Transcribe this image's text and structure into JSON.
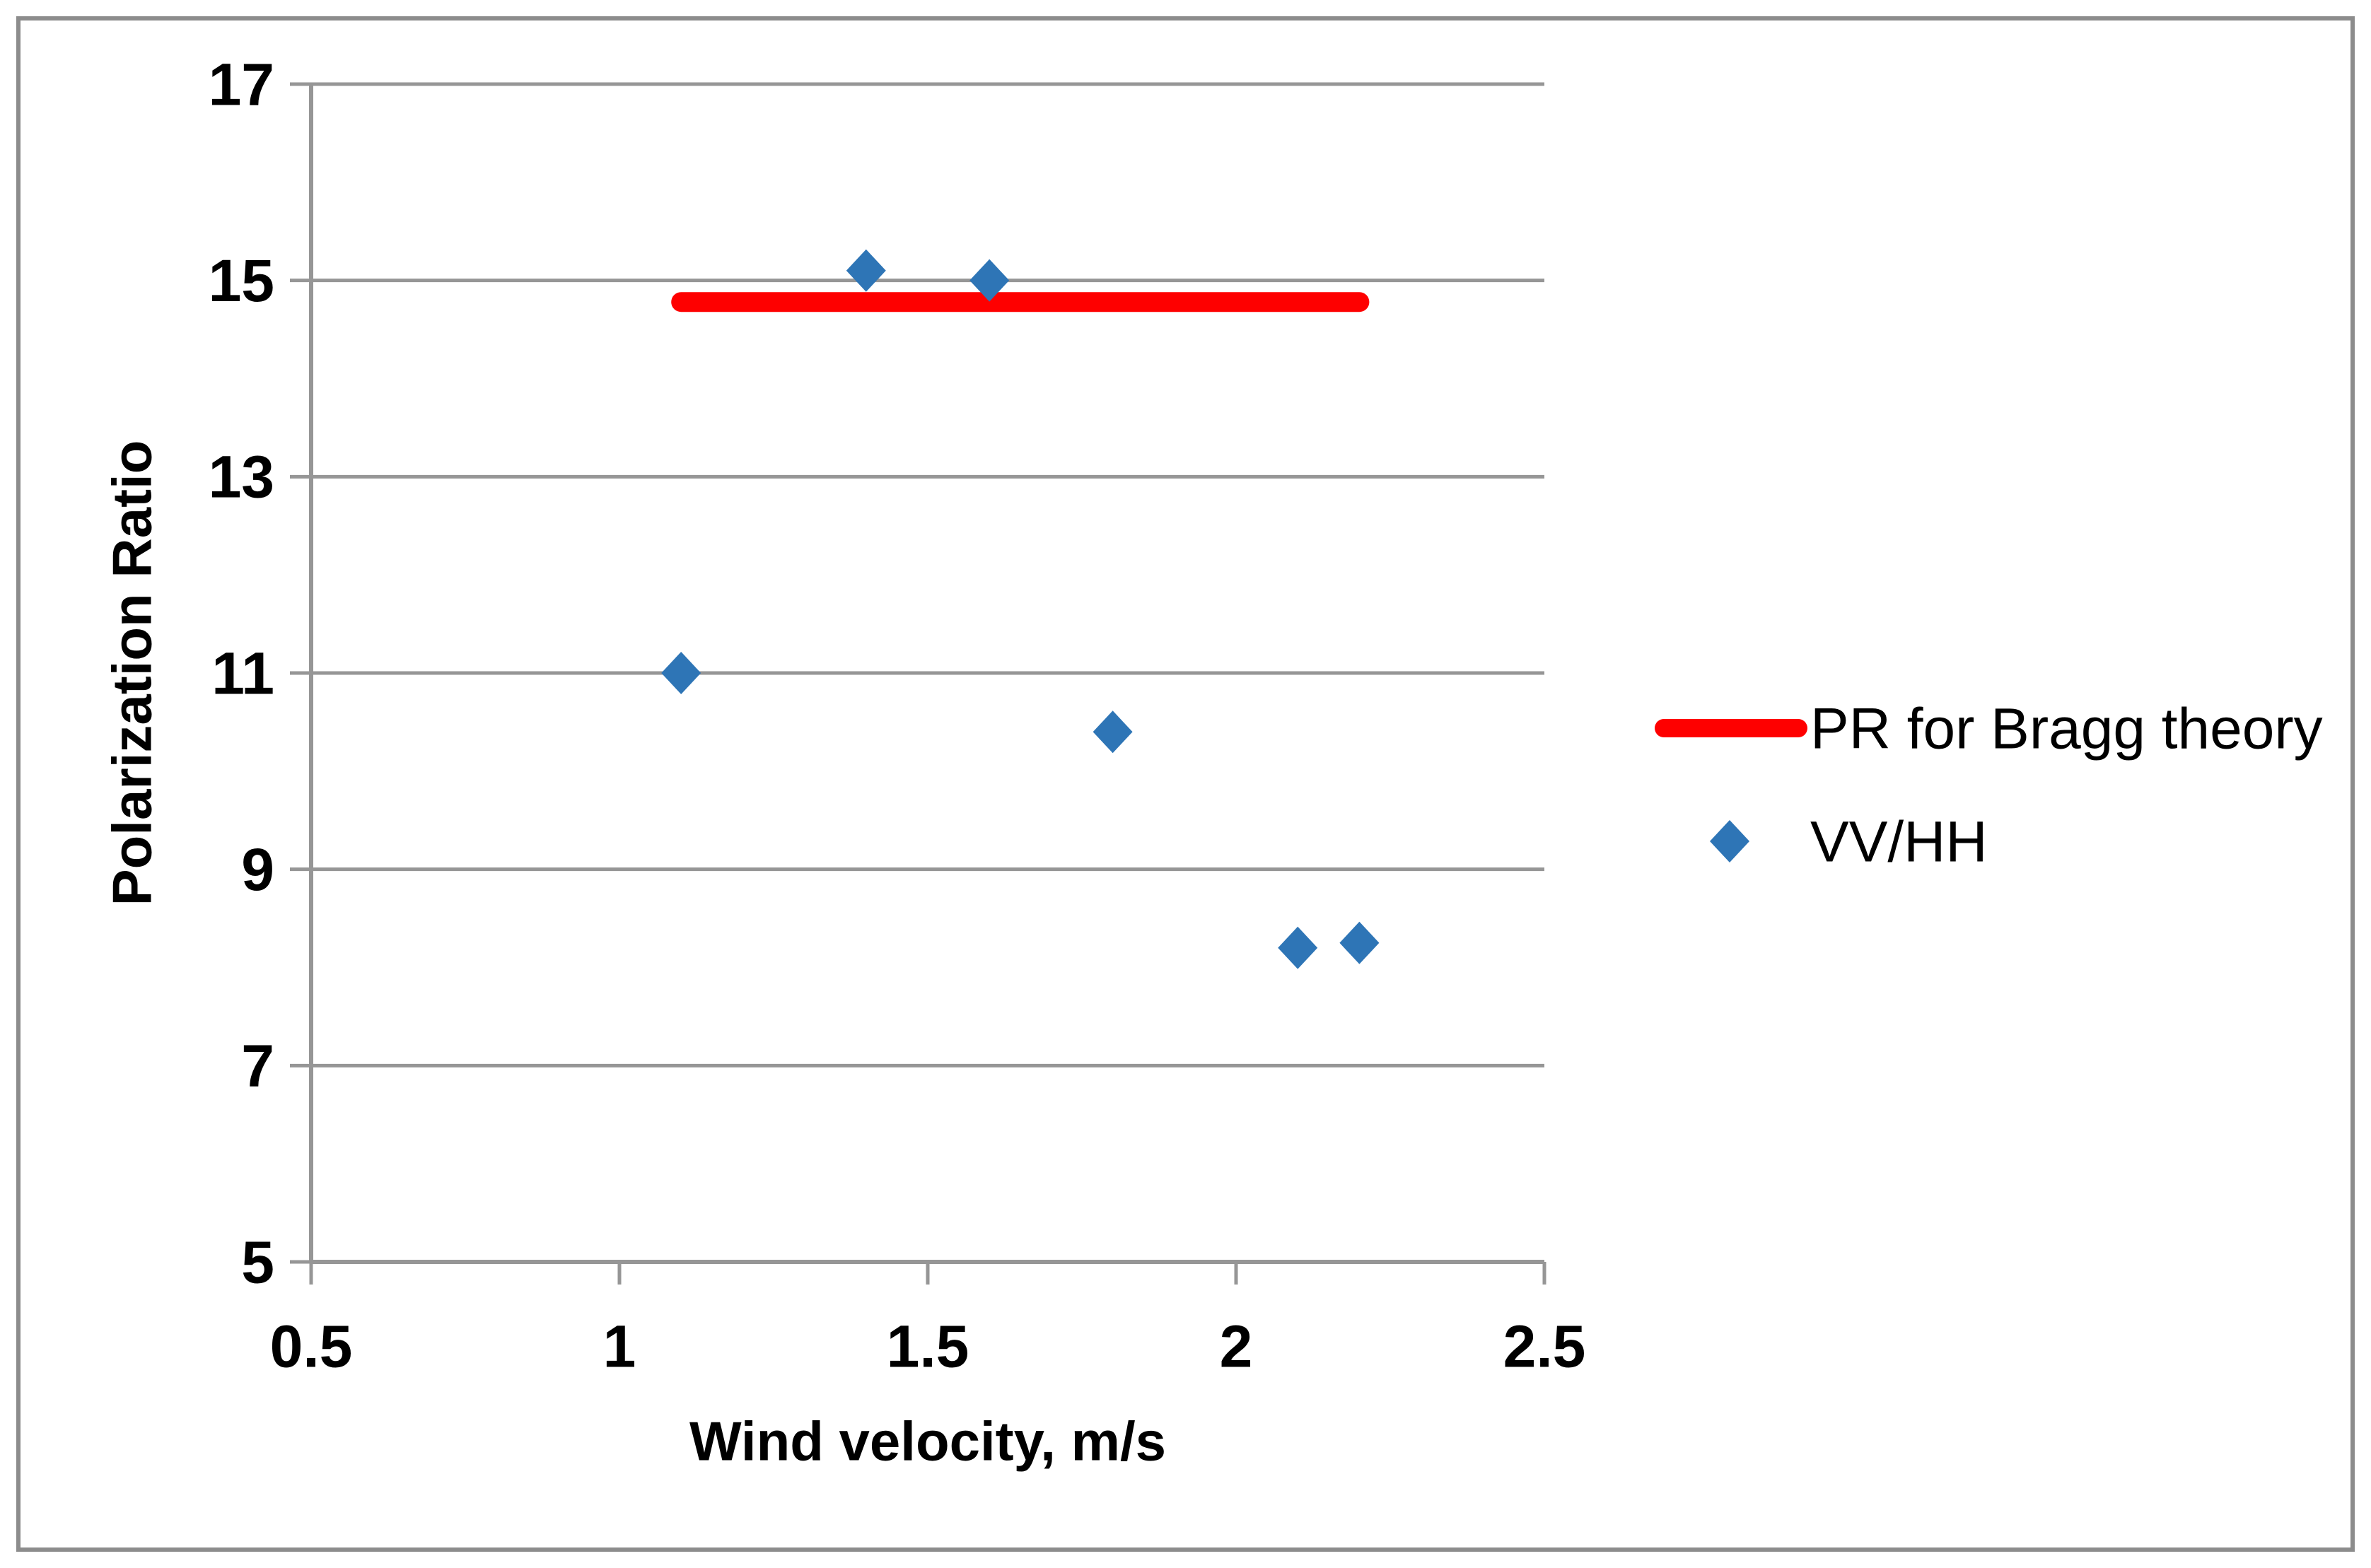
{
  "colors": {
    "background": "#FFFFFF",
    "grid": "#969696",
    "axis": "#969696",
    "text": "#000000",
    "figure_border": "#8C8C8C",
    "bragg_line": "#FE0000",
    "marker_blue": "#2E75B6"
  },
  "chart_data": {
    "type": "scatter",
    "title": "",
    "xlabel": "Wind velocity, m/s",
    "ylabel": "Polarization Ratio",
    "xlim": [
      0.5,
      2.5
    ],
    "ylim": [
      5,
      17
    ],
    "grid": true,
    "xticks": [
      0.5,
      1,
      1.5,
      2,
      2.5
    ],
    "xtick_labels": [
      "0.5",
      "1",
      "1.5",
      "2",
      "2.5"
    ],
    "yticks": [
      5,
      7,
      9,
      11,
      13,
      15,
      17
    ],
    "ytick_labels": [
      "5",
      "7",
      "9",
      "11",
      "13",
      "15",
      "17"
    ],
    "legend": {
      "position": "right-middle",
      "entries": [
        "PR for Bragg theory",
        "VV/HH"
      ]
    },
    "series": [
      {
        "name": "PR for Bragg theory",
        "type": "line",
        "color": "#FE0000",
        "points": [
          [
            1.1,
            14.78
          ],
          [
            2.2,
            14.78
          ]
        ]
      },
      {
        "name": "VV/HH",
        "type": "scatter",
        "marker": "diamond",
        "color": "#2E75B6",
        "points": [
          [
            1.1,
            11.0
          ],
          [
            1.4,
            15.1
          ],
          [
            1.6,
            15.0
          ],
          [
            1.8,
            10.4
          ],
          [
            2.1,
            8.2
          ],
          [
            2.2,
            8.25
          ]
        ]
      }
    ]
  }
}
